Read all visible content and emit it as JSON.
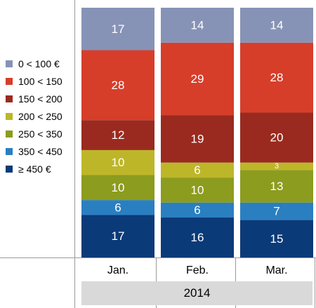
{
  "chart_data": {
    "type": "bar",
    "stacked": true,
    "categories": [
      "Jan.",
      "Feb.",
      "Mar."
    ],
    "group_label": "2014",
    "series": [
      {
        "name": "≥ 450 €",
        "color": "#0b3a78",
        "values": [
          17,
          16,
          15
        ]
      },
      {
        "name": "350 < 450",
        "color": "#2a7fc1",
        "values": [
          6,
          6,
          7
        ]
      },
      {
        "name": "250 < 350",
        "color": "#8c9c1e",
        "values": [
          10,
          10,
          13
        ]
      },
      {
        "name": "200 < 250",
        "color": "#bdb629",
        "values": [
          10,
          6,
          3
        ]
      },
      {
        "name": "150 < 200",
        "color": "#9a2a1f",
        "values": [
          12,
          19,
          20
        ]
      },
      {
        "name": "100 < 150",
        "color": "#d63e2a",
        "values": [
          28,
          29,
          28
        ]
      },
      {
        "name": "0 < 100 €",
        "color": "#8793b6",
        "values": [
          17,
          14,
          14
        ]
      }
    ],
    "xlabel": "",
    "ylabel": "",
    "legend_position": "left",
    "grid": false
  }
}
